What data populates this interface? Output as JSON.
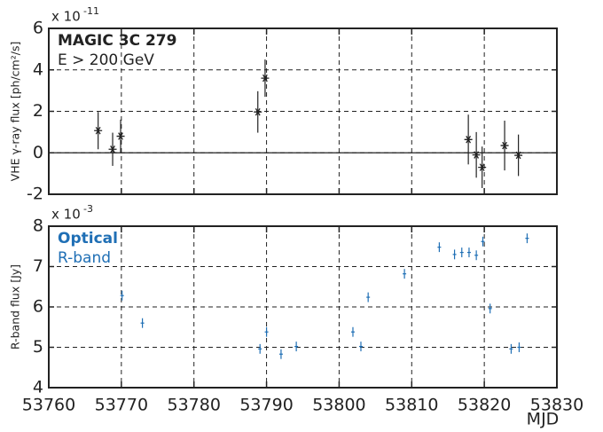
{
  "chart_data": [
    {
      "type": "scatter",
      "ylabel": "VHE γ-ray flux [ph/cm²/s]",
      "scale_base": "x 10",
      "scale_exponent": "-11",
      "annotations": [
        {
          "text": "MAGIC 3C 279",
          "color": "#222222",
          "bold": true
        },
        {
          "text": "E > 200 GeV",
          "color": "#222222",
          "bold": false
        }
      ],
      "xlim": [
        53760,
        53830
      ],
      "xticks": [
        53760,
        53770,
        53780,
        53790,
        53800,
        53810,
        53820,
        53830
      ],
      "ylim": [
        -2,
        6
      ],
      "yticks": [
        -2,
        0,
        2,
        4,
        6
      ],
      "grid": true,
      "zero_line": true,
      "series": [
        {
          "color": "#222222",
          "marker": "star",
          "x": [
            53766.8,
            53768.8,
            53769.9,
            53788.8,
            53789.8,
            53817.8,
            53818.9,
            53819.7,
            53822.8,
            53824.7
          ],
          "values": [
            1.07,
            0.17,
            0.8,
            1.97,
            3.6,
            0.64,
            -0.1,
            -0.7,
            0.35,
            -0.12
          ],
          "errors": [
            0.9,
            0.8,
            0.8,
            1.0,
            0.9,
            1.2,
            1.1,
            1.0,
            1.2,
            1.0
          ]
        }
      ]
    },
    {
      "type": "scatter",
      "ylabel": "R-band flux [Jy]",
      "xlabel": "MJD",
      "scale_base": "x 10",
      "scale_exponent": "-3",
      "annotations": [
        {
          "text": "Optical",
          "color": "#1f6fb5",
          "bold": true
        },
        {
          "text": "R-band",
          "color": "#1f6fb5",
          "bold": false
        }
      ],
      "xlim": [
        53760,
        53830
      ],
      "xticks": [
        53760,
        53770,
        53780,
        53790,
        53800,
        53810,
        53820,
        53830
      ],
      "ylim": [
        4,
        8
      ],
      "yticks": [
        4,
        5,
        6,
        7,
        8
      ],
      "grid": true,
      "zero_line": false,
      "series": [
        {
          "color": "#1f6fb5",
          "marker": "dash",
          "x": [
            53770.1,
            53772.9,
            53789.1,
            53790.0,
            53792.0,
            53794.1,
            53801.9,
            53803.0,
            53804.0,
            53809.0,
            53813.8,
            53815.9,
            53816.9,
            53817.9,
            53818.9,
            53819.8,
            53820.8,
            53823.7,
            53824.8,
            53825.9
          ],
          "values": [
            6.28,
            5.6,
            4.96,
            5.38,
            4.83,
            5.02,
            5.38,
            5.02,
            6.24,
            6.82,
            7.48,
            7.3,
            7.35,
            7.35,
            7.28,
            7.62,
            5.96,
            4.96,
            5.0,
            7.7
          ],
          "errors": [
            0.12,
            0.12,
            0.12,
            0.12,
            0.12,
            0.12,
            0.12,
            0.12,
            0.12,
            0.12,
            0.12,
            0.12,
            0.12,
            0.12,
            0.12,
            0.12,
            0.12,
            0.12,
            0.12,
            0.12
          ]
        }
      ]
    }
  ]
}
